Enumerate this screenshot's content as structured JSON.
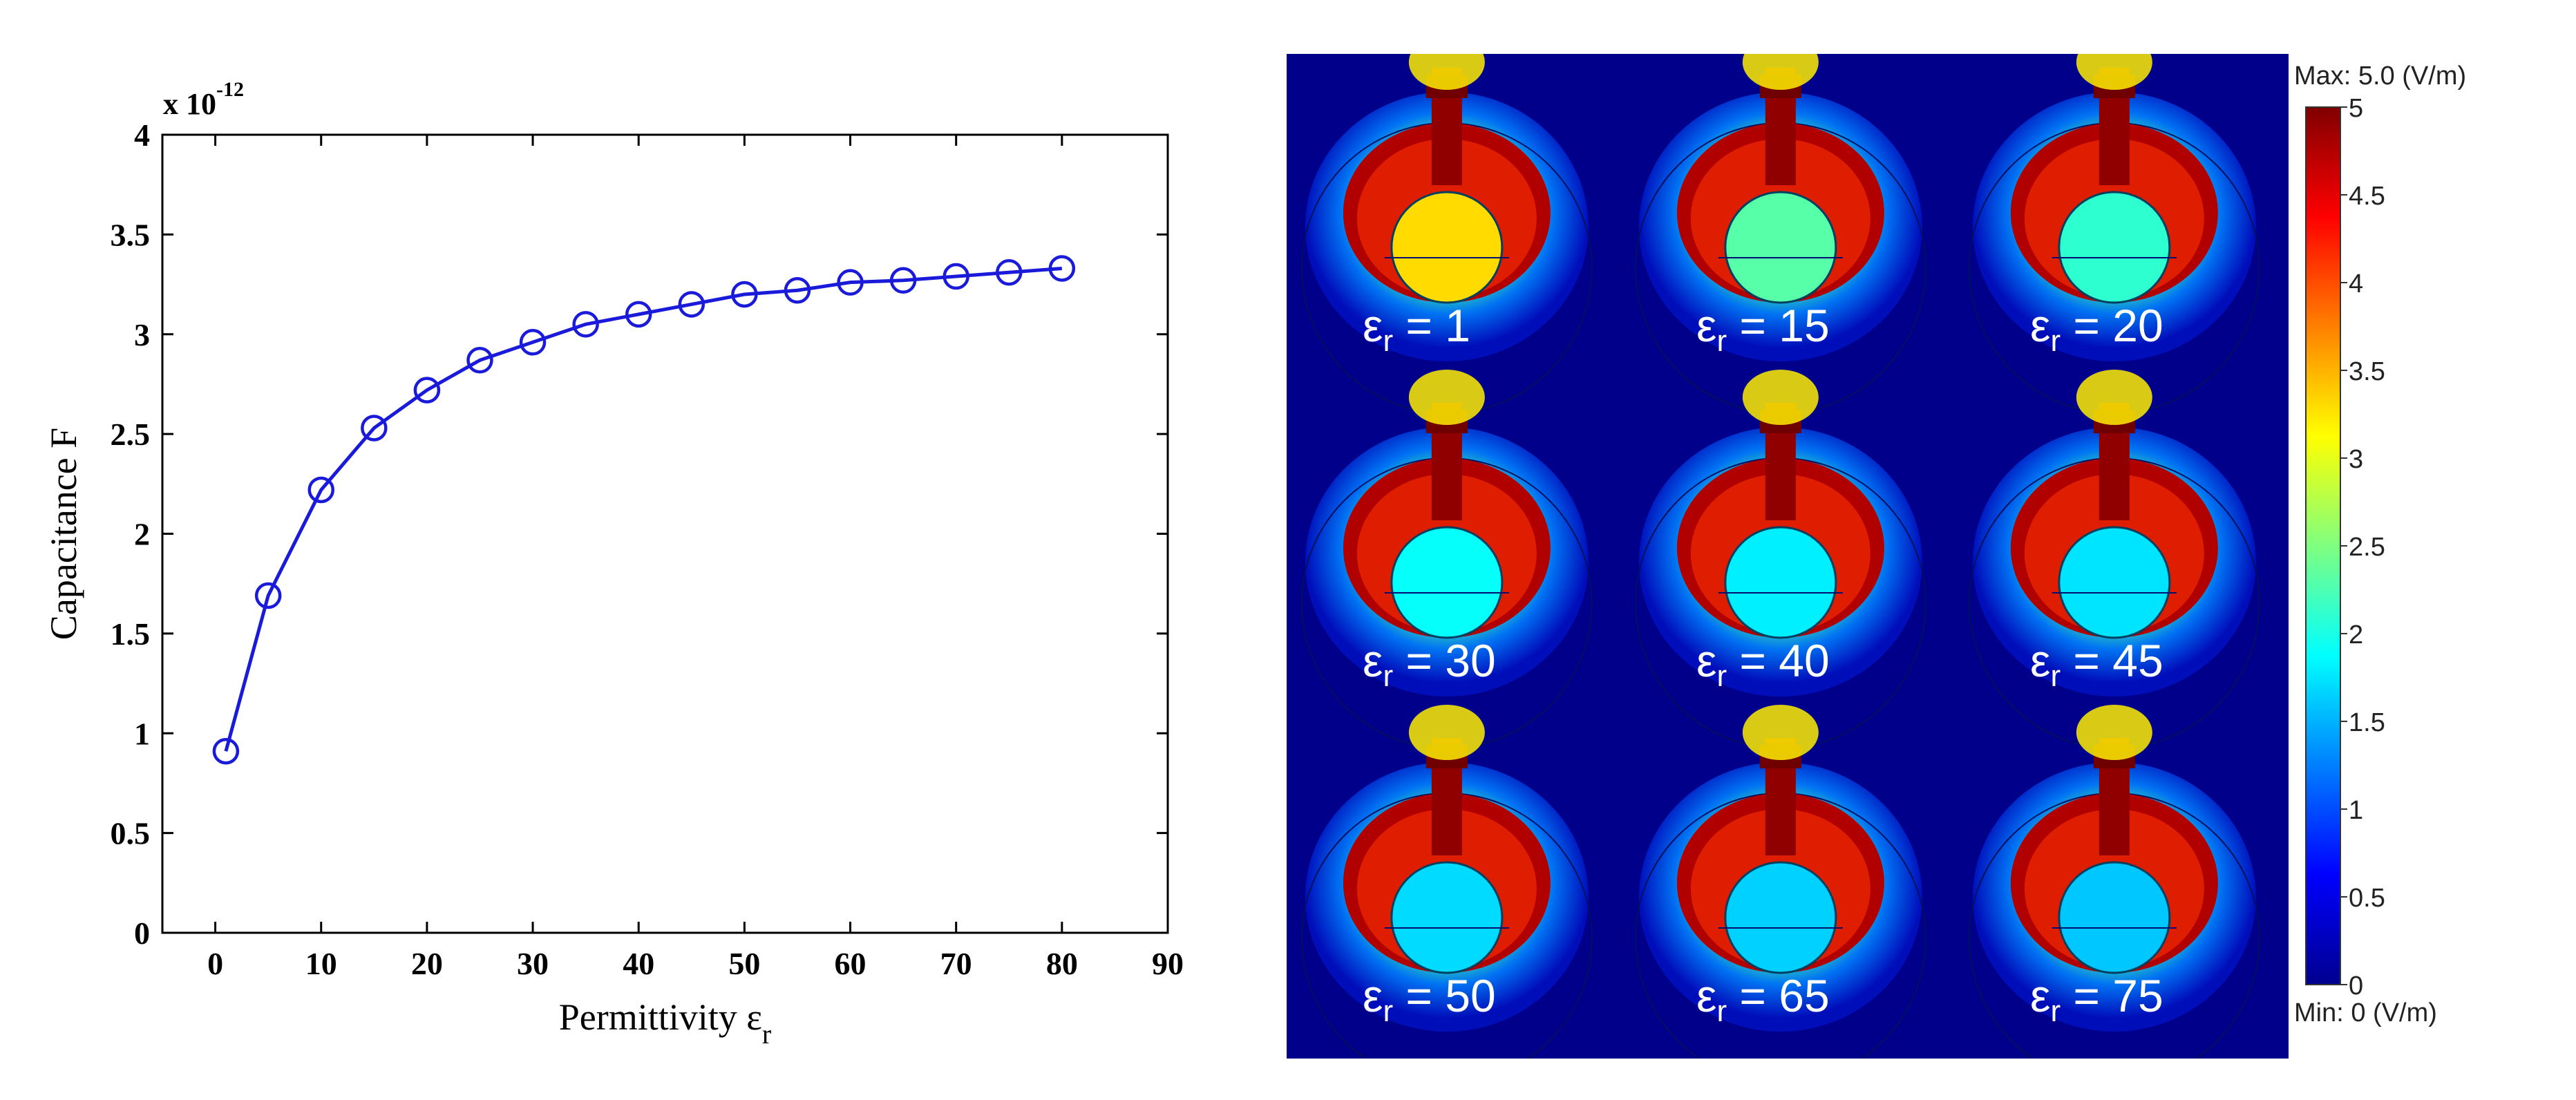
{
  "chart_data": [
    {
      "type": "line",
      "title": "",
      "exponent_label": "x 10",
      "exponent_power": "-12",
      "xlabel": "Permittivity ε",
      "xlabel_sub": "r",
      "ylabel": "Capacitance F",
      "xlim": [
        -5,
        90
      ],
      "ylim": [
        0,
        4
      ],
      "xticks": [
        0,
        10,
        20,
        30,
        40,
        50,
        60,
        70,
        80,
        90
      ],
      "yticks": [
        0,
        0.5,
        1,
        1.5,
        2,
        2.5,
        3,
        3.5,
        4
      ],
      "ytick_labels": [
        "0",
        "0.5",
        "1",
        "1.5",
        "2",
        "2.5",
        "3",
        "3.5",
        "4"
      ],
      "marker": "circle",
      "color": "#1a1adb",
      "grid": false,
      "series": [
        {
          "x": [
            1,
            5,
            10,
            15,
            20,
            25,
            30,
            35,
            40,
            45,
            50,
            55,
            60,
            65,
            70,
            75,
            80
          ],
          "y": [
            0.91,
            1.69,
            2.22,
            2.53,
            2.72,
            2.87,
            2.96,
            3.05,
            3.1,
            3.15,
            3.2,
            3.22,
            3.26,
            3.27,
            3.29,
            3.31,
            3.33
          ]
        }
      ]
    },
    {
      "type": "heatmap",
      "panels": [
        {
          "label_prefix": "ε",
          "label_sub": "r",
          "label_value": "= 1"
        },
        {
          "label_prefix": "ε",
          "label_sub": "r",
          "label_value": "= 15"
        },
        {
          "label_prefix": "ε",
          "label_sub": "r",
          "label_value": "= 20"
        },
        {
          "label_prefix": "ε",
          "label_sub": "r",
          "label_value": "= 30"
        },
        {
          "label_prefix": "ε",
          "label_sub": "r",
          "label_value": "= 40"
        },
        {
          "label_prefix": "ε",
          "label_sub": "r",
          "label_value": "= 45"
        },
        {
          "label_prefix": "ε",
          "label_sub": "r",
          "label_value": "= 50"
        },
        {
          "label_prefix": "ε",
          "label_sub": "r",
          "label_value": "= 65"
        },
        {
          "label_prefix": "ε",
          "label_sub": "r",
          "label_value": "= 75"
        }
      ],
      "inner_field_level": [
        3.3,
        2.3,
        2.1,
        1.9,
        1.8,
        1.75,
        1.7,
        1.65,
        1.6
      ],
      "colorbar": {
        "max_label": "Max: 5.0",
        "min_label": "Min: 0",
        "unit": "(V/m)",
        "range": [
          0,
          5
        ],
        "ticks": [
          "5",
          "4.5",
          "4",
          "3.5",
          "3",
          "2.5",
          "2",
          "1.5",
          "1",
          "0.5",
          "0"
        ]
      }
    }
  ]
}
